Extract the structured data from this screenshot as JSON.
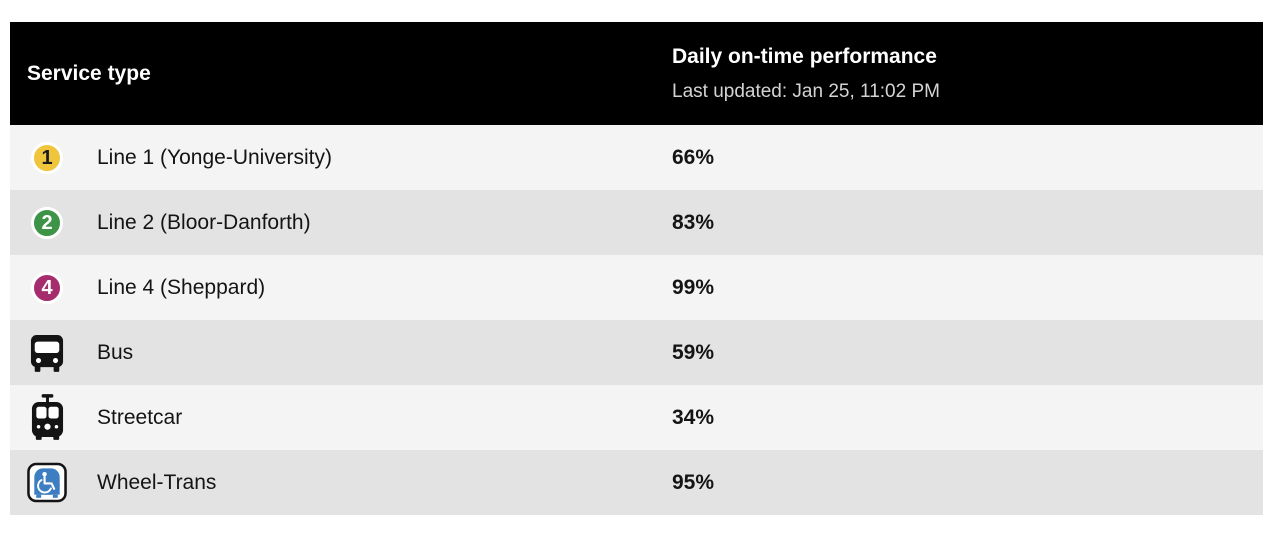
{
  "header": {
    "col1": "Service type",
    "col2_title": "Daily on-time performance",
    "col2_subtitle": "Last updated: Jan 25, 11:02 PM"
  },
  "rows": [
    {
      "icon": "line-1-badge",
      "badge": "1",
      "badge_color": "#efc53e",
      "badge_text_color": "#1a1a1a",
      "label": "Line 1 (Yonge-University)",
      "value": "66%"
    },
    {
      "icon": "line-2-badge",
      "badge": "2",
      "badge_color": "#3d9346",
      "badge_text_color": "#ffffff",
      "label": "Line 2 (Bloor-Danforth)",
      "value": "83%"
    },
    {
      "icon": "line-4-badge",
      "badge": "4",
      "badge_color": "#a52d6e",
      "badge_text_color": "#ffffff",
      "label": "Line 4 (Sheppard)",
      "value": "99%"
    },
    {
      "icon": "bus-icon",
      "label": "Bus",
      "value": "59%"
    },
    {
      "icon": "streetcar-icon",
      "label": "Streetcar",
      "value": "34%"
    },
    {
      "icon": "wheel-trans-icon",
      "label": "Wheel-Trans",
      "value": "95%"
    }
  ],
  "colors": {
    "header_bg": "#000000",
    "header_subtitle": "#d4d4d4",
    "row_light": "#f4f4f4",
    "row_dark": "#e3e3e3",
    "text": "#141414",
    "line1_yellow": "#efc53e",
    "line2_green": "#3d9346",
    "line4_magenta": "#a52d6e",
    "wheeltrans_blue": "#3d7ec2"
  },
  "chart_data": {
    "type": "table",
    "title": "Daily on-time performance",
    "subtitle": "Last updated: Jan 25, 11:02 PM",
    "columns": [
      "Service type",
      "Daily on-time performance"
    ],
    "categories": [
      "Line 1 (Yonge-University)",
      "Line 2 (Bloor-Danforth)",
      "Line 4 (Sheppard)",
      "Bus",
      "Streetcar",
      "Wheel-Trans"
    ],
    "values": [
      66,
      83,
      99,
      59,
      34,
      95
    ],
    "value_unit": "%"
  }
}
